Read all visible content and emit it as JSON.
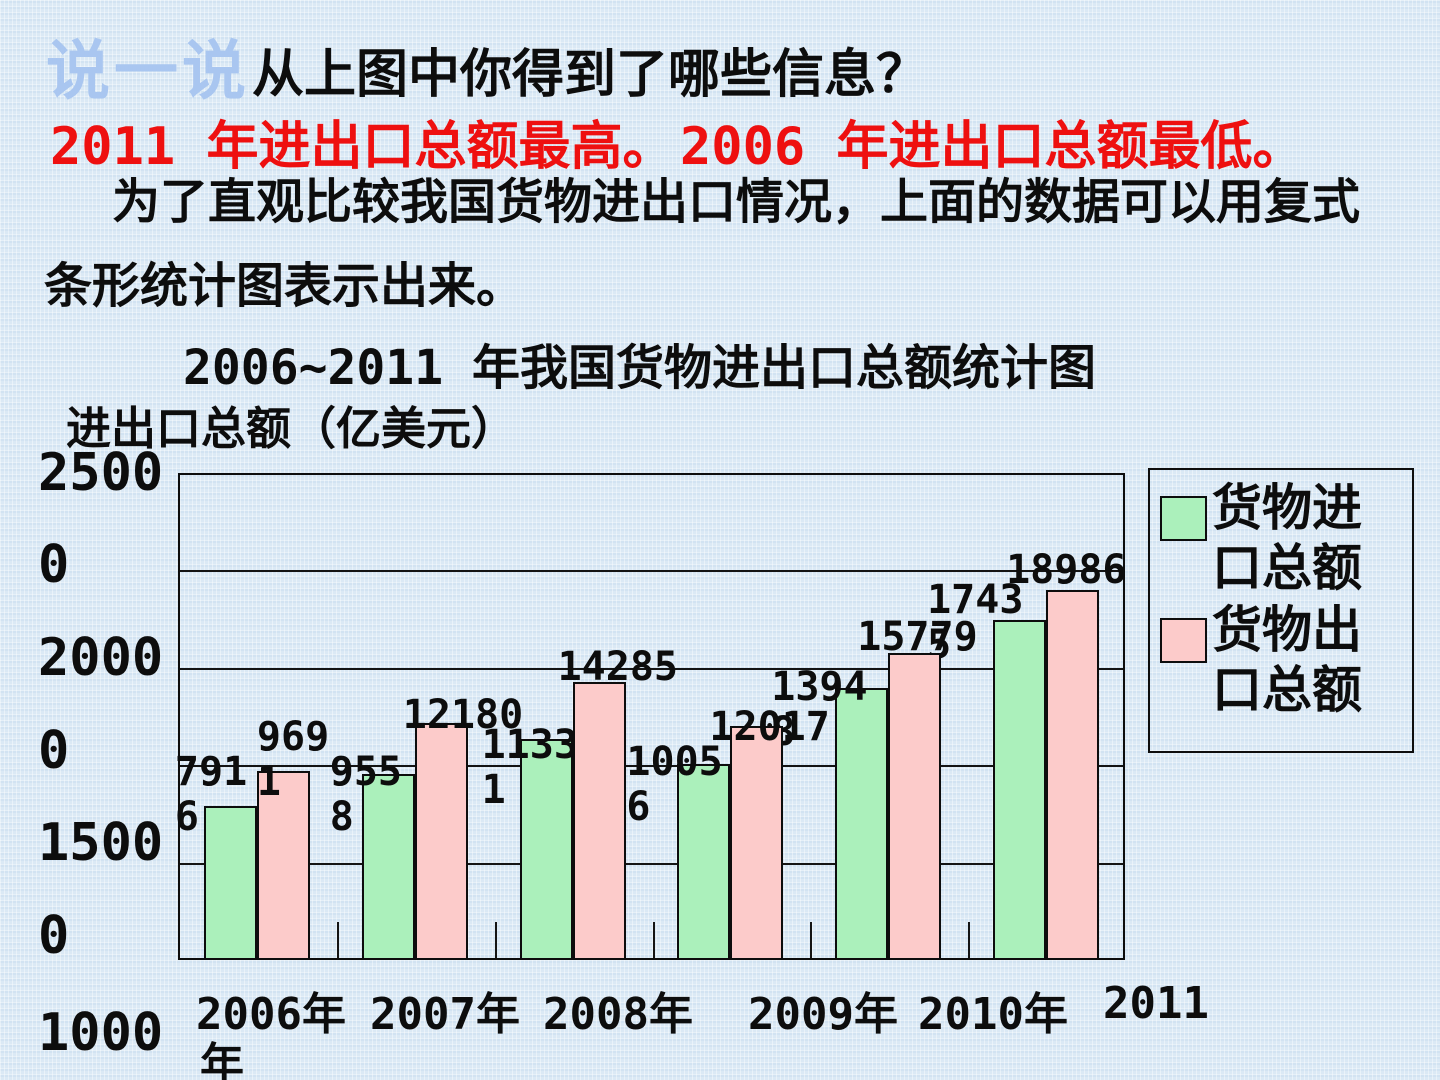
{
  "slide": {
    "badge": "说一说",
    "heading": "从上图中你得到了哪些信息？",
    "answers": {
      "high": "2011 年进出口总额最高。",
      "low": "2006 年进出口总额最低。"
    },
    "paragraph": [
      "为了直观比较我国货物进出口情况，上面的数据可以用复式",
      "条形统计图表示出来。"
    ]
  },
  "colors": {
    "answer_red": "#ee1010",
    "badge_blue": "#a9c6f0",
    "import_green": "#abf0bb",
    "export_pink": "#fccbca",
    "axis_black": "#0d0d0d",
    "background_blue": "#dbe9f5"
  },
  "chart_data": {
    "type": "bar",
    "title": "2006~2011 年我国货物进出口总额统计图",
    "ylabel": "进出口总额（亿美元）",
    "xlabel": "年",
    "categories": [
      "2006年",
      "2007年",
      "2008年",
      "2009年",
      "2010年",
      "2011年"
    ],
    "series": [
      {
        "name": "货物进口总额",
        "legend_lines": "货物进\n口总额",
        "color": "#abf0bb",
        "values": [
          7916,
          9558,
          11331,
          10056,
          13948,
          17435
        ],
        "label_lines": [
          "791\n6",
          "955\n8",
          "1133\n1",
          "1005\n6",
          "1394\n8",
          "1743\n5"
        ]
      },
      {
        "name": "货物出口总额",
        "legend_lines": "货物出\n口总额",
        "color": "#fccbca",
        "values": [
          9691,
          12180,
          14285,
          12017,
          15779,
          18986
        ],
        "label_lines": [
          "969\n1",
          "12180",
          "14285",
          "12017",
          "15779",
          "18986"
        ]
      }
    ],
    "ylim": [
      0,
      25000
    ],
    "gridline_interval": 5000,
    "grid": true,
    "legend_position": "top-right",
    "ytick_display_lines": [
      "2500",
      "0",
      "2000",
      "0",
      "1500",
      "0",
      "1000"
    ],
    "xtick_display": {
      "line1": [
        "2006年",
        "2007年",
        "2008年",
        "2009年",
        "2010年",
        "2011"
      ],
      "line2": "年"
    }
  }
}
